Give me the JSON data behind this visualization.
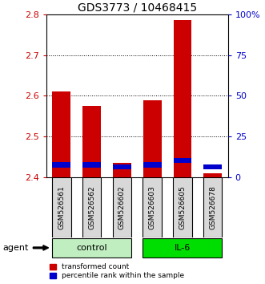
{
  "title": "GDS3773 / 10468415",
  "categories": [
    "GSM526561",
    "GSM526562",
    "GSM526602",
    "GSM526603",
    "GSM526605",
    "GSM526678"
  ],
  "red_values": [
    2.61,
    2.575,
    2.435,
    2.59,
    2.785,
    2.41
  ],
  "blue_values": [
    2.425,
    2.425,
    2.42,
    2.425,
    2.435,
    2.42
  ],
  "blue_heights": [
    0.012,
    0.012,
    0.012,
    0.012,
    0.012,
    0.012
  ],
  "red_base": 2.4,
  "ylim": [
    2.4,
    2.8
  ],
  "yticks": [
    2.4,
    2.5,
    2.6,
    2.7,
    2.8
  ],
  "y2ticks": [
    0,
    25,
    50,
    75,
    100
  ],
  "y2labels": [
    "0",
    "25",
    "50",
    "75",
    "100%"
  ],
  "groups": [
    {
      "label": "control",
      "indices": [
        0,
        1,
        2
      ],
      "color": "#c0eec0"
    },
    {
      "label": "IL-6",
      "indices": [
        3,
        4,
        5
      ],
      "color": "#00dd00"
    }
  ],
  "bar_width": 0.6,
  "red_color": "#cc0000",
  "blue_color": "#0000cc",
  "sample_bg_color": "#d8d8d8",
  "title_fontsize": 10,
  "axis_label_color_left": "#cc0000",
  "axis_label_color_right": "#0000cc",
  "agent_label": "agent",
  "legend_red": "transformed count",
  "legend_blue": "percentile rank within the sample"
}
